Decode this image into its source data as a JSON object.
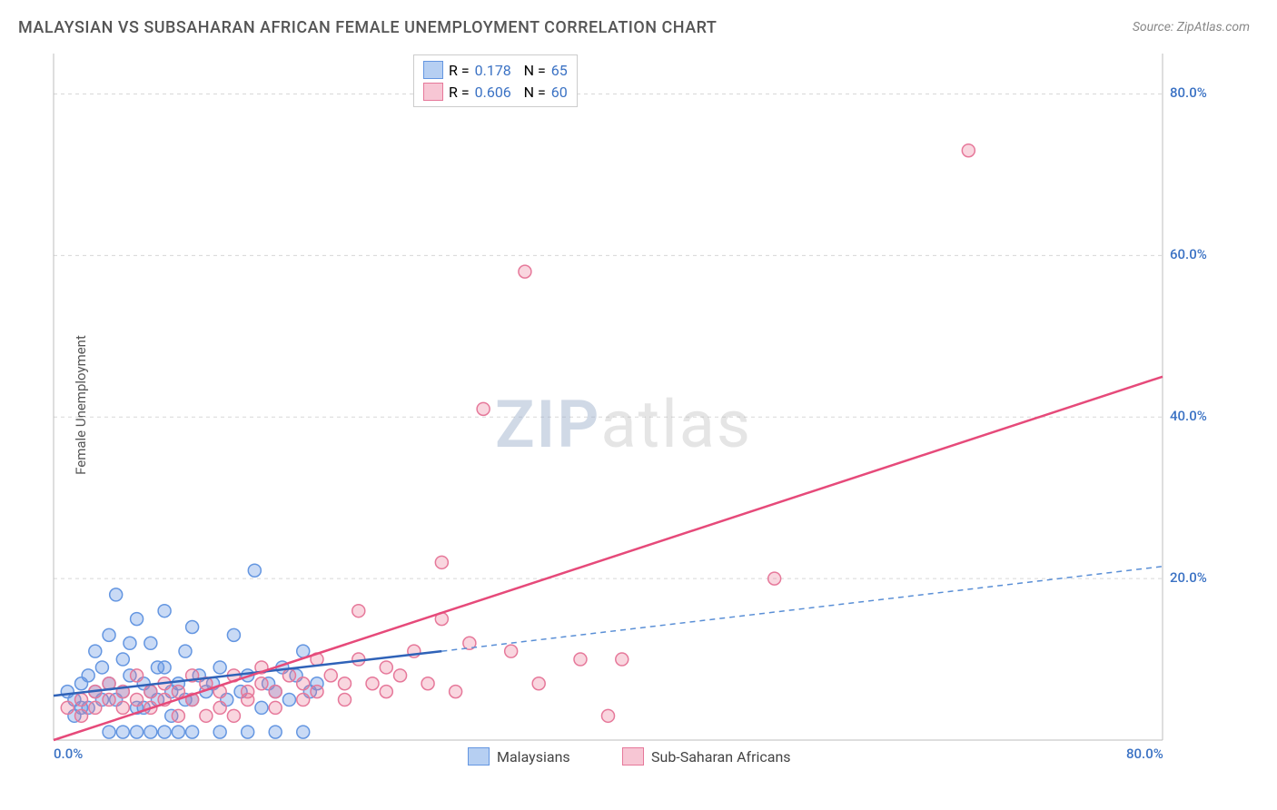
{
  "title": "MALAYSIAN VS SUBSAHARAN AFRICAN FEMALE UNEMPLOYMENT CORRELATION CHART",
  "source": "Source: ZipAtlas.com",
  "ylabel": "Female Unemployment",
  "watermark_zip": "ZIP",
  "watermark_atlas": "atlas",
  "chart": {
    "type": "scatter",
    "background_color": "#ffffff",
    "grid_color": "#d8d8d8",
    "grid_dash": "4,4",
    "axis_border_color": "#bcbcbc",
    "xlim": [
      0,
      80
    ],
    "ylim": [
      0,
      85
    ],
    "gridlines_y": [
      20,
      40,
      60,
      80
    ],
    "x_ticks": [
      {
        "v": 0,
        "label": "0.0%"
      },
      {
        "v": 80,
        "label": "80.0%"
      }
    ],
    "y_ticks": [
      {
        "v": 20,
        "label": "20.0%"
      },
      {
        "v": 40,
        "label": "40.0%"
      },
      {
        "v": 60,
        "label": "60.0%"
      },
      {
        "v": 80,
        "label": "80.0%"
      }
    ],
    "tick_color": "#3b72c4",
    "marker_radius": 7,
    "marker_stroke_width": 1.5,
    "series": [
      {
        "name": "Malaysians",
        "fill": "rgba(100,150,225,0.35)",
        "stroke": "#6496e1",
        "swatch_fill": "#b6cff2",
        "swatch_border": "#6496e1",
        "r_label": "R =",
        "n_label": "N =",
        "r": "0.178",
        "n": "65",
        "trend": {
          "x1": 0,
          "y1": 5.5,
          "x2": 28,
          "y2": 11,
          "color": "#2f62b8",
          "width": 2.5,
          "dash": ""
        },
        "trend_ext": {
          "x1": 28,
          "y1": 11,
          "x2": 80,
          "y2": 21.5,
          "color": "#5a8fd6",
          "width": 1.5,
          "dash": "6,5"
        },
        "points": [
          [
            1,
            6
          ],
          [
            1.5,
            5
          ],
          [
            2,
            4
          ],
          [
            2,
            7
          ],
          [
            2.5,
            8
          ],
          [
            3,
            6
          ],
          [
            3,
            11
          ],
          [
            3.5,
            5
          ],
          [
            4,
            13
          ],
          [
            4,
            7
          ],
          [
            4.5,
            18
          ],
          [
            5,
            6
          ],
          [
            5,
            10
          ],
          [
            5.5,
            8
          ],
          [
            6,
            4
          ],
          [
            6,
            15
          ],
          [
            6.5,
            7
          ],
          [
            7,
            6
          ],
          [
            7,
            12
          ],
          [
            7.5,
            5
          ],
          [
            8,
            9
          ],
          [
            8,
            16
          ],
          [
            8.5,
            6
          ],
          [
            9,
            7
          ],
          [
            9.5,
            11
          ],
          [
            10,
            5
          ],
          [
            10,
            14
          ],
          [
            10.5,
            8
          ],
          [
            11,
            6
          ],
          [
            11.5,
            7
          ],
          [
            12,
            9
          ],
          [
            12.5,
            5
          ],
          [
            13,
            13
          ],
          [
            13.5,
            6
          ],
          [
            14,
            8
          ],
          [
            14.5,
            21
          ],
          [
            15,
            4
          ],
          [
            15.5,
            7
          ],
          [
            16,
            6
          ],
          [
            16.5,
            9
          ],
          [
            17,
            5
          ],
          [
            17.5,
            8
          ],
          [
            18,
            11
          ],
          [
            18.5,
            6
          ],
          [
            19,
            7
          ],
          [
            1.5,
            3
          ],
          [
            2.5,
            4
          ],
          [
            3.5,
            9
          ],
          [
            4.5,
            5
          ],
          [
            5.5,
            12
          ],
          [
            6.5,
            4
          ],
          [
            7.5,
            9
          ],
          [
            8.5,
            3
          ],
          [
            9.5,
            5
          ],
          [
            4,
            1
          ],
          [
            5,
            1
          ],
          [
            6,
            1
          ],
          [
            7,
            1
          ],
          [
            8,
            1
          ],
          [
            9,
            1
          ],
          [
            10,
            1
          ],
          [
            14,
            1
          ],
          [
            16,
            1
          ],
          [
            18,
            1
          ],
          [
            12,
            1
          ]
        ]
      },
      {
        "name": "Sub-Saharan Africans",
        "fill": "rgba(235,120,150,0.30)",
        "stroke": "#e6789a",
        "swatch_fill": "#f7c6d4",
        "swatch_border": "#e6789a",
        "r_label": "R =",
        "n_label": "N =",
        "r": "0.606",
        "n": "60",
        "trend": {
          "x1": 0,
          "y1": 0,
          "x2": 80,
          "y2": 45,
          "color": "#e64a7a",
          "width": 2.5,
          "dash": ""
        },
        "points": [
          [
            1,
            4
          ],
          [
            2,
            5
          ],
          [
            2,
            3
          ],
          [
            3,
            6
          ],
          [
            3,
            4
          ],
          [
            4,
            7
          ],
          [
            4,
            5
          ],
          [
            5,
            6
          ],
          [
            5,
            4
          ],
          [
            6,
            8
          ],
          [
            6,
            5
          ],
          [
            7,
            6
          ],
          [
            7,
            4
          ],
          [
            8,
            7
          ],
          [
            8,
            5
          ],
          [
            9,
            6
          ],
          [
            10,
            8
          ],
          [
            10,
            5
          ],
          [
            11,
            7
          ],
          [
            12,
            6
          ],
          [
            12,
            4
          ],
          [
            13,
            8
          ],
          [
            14,
            6
          ],
          [
            14,
            5
          ],
          [
            15,
            9
          ],
          [
            15,
            7
          ],
          [
            16,
            6
          ],
          [
            16,
            4
          ],
          [
            17,
            8
          ],
          [
            18,
            7
          ],
          [
            18,
            5
          ],
          [
            19,
            10
          ],
          [
            19,
            6
          ],
          [
            20,
            8
          ],
          [
            21,
            7
          ],
          [
            21,
            5
          ],
          [
            22,
            10
          ],
          [
            22,
            16
          ],
          [
            23,
            7
          ],
          [
            24,
            9
          ],
          [
            24,
            6
          ],
          [
            25,
            8
          ],
          [
            26,
            11
          ],
          [
            27,
            7
          ],
          [
            28,
            15
          ],
          [
            28,
            22
          ],
          [
            29,
            6
          ],
          [
            30,
            12
          ],
          [
            31,
            41
          ],
          [
            33,
            11
          ],
          [
            34,
            58
          ],
          [
            38,
            10
          ],
          [
            40,
            3
          ],
          [
            41,
            10
          ],
          [
            52,
            20
          ],
          [
            9,
            3
          ],
          [
            11,
            3
          ],
          [
            13,
            3
          ],
          [
            66,
            73
          ],
          [
            35,
            7
          ]
        ]
      }
    ]
  }
}
